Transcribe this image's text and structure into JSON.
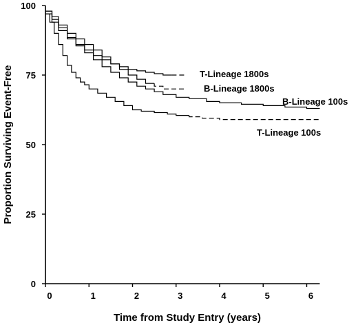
{
  "chart_data": {
    "type": "line",
    "title": "",
    "xlabel": "Time from Study Entry (years)",
    "ylabel": "Proportion Surviving Event-Free",
    "xlim": [
      0,
      6.3
    ],
    "ylim": [
      0,
      100
    ],
    "x_ticks": [
      "0",
      "1",
      "2",
      "3",
      "4",
      "5",
      "6"
    ],
    "y_ticks": [
      "0",
      "25",
      "50",
      "75",
      "100"
    ],
    "grid": false,
    "legend": "none (series labelled directly beside each curve end)",
    "series": [
      {
        "name": "T-Lineage 1800s",
        "x": [
          0,
          0.15,
          0.3,
          0.5,
          0.7,
          0.9,
          1.1,
          1.3,
          1.5,
          1.7,
          1.9,
          2.1,
          2.3,
          2.5,
          2.7,
          2.9,
          3.2
        ],
        "y": [
          98,
          95,
          92,
          88.5,
          86,
          84,
          82,
          80.5,
          79,
          78,
          77,
          76.5,
          76,
          75.5,
          75,
          75,
          75
        ],
        "dashed_from_x": 2.9
      },
      {
        "name": "B-Lineage 1800s",
        "x": [
          0,
          0.15,
          0.3,
          0.5,
          0.7,
          0.9,
          1.1,
          1.3,
          1.5,
          1.7,
          1.9,
          2.1,
          2.3,
          2.5,
          2.7,
          2.9,
          3.2
        ],
        "y": [
          98,
          96,
          93,
          90,
          88,
          86,
          84,
          81.5,
          79,
          77,
          75,
          73.5,
          72,
          71,
          70,
          70,
          70
        ],
        "dashed_from_x": 2.5
      },
      {
        "name": "B-Lineage 100s",
        "x": [
          0,
          0.15,
          0.3,
          0.5,
          0.7,
          0.9,
          1.1,
          1.3,
          1.5,
          1.7,
          1.9,
          2.1,
          2.3,
          2.5,
          2.7,
          3.0,
          3.3,
          3.7,
          4.0,
          4.5,
          5.0,
          5.5,
          6.0,
          6.3
        ],
        "y": [
          97,
          94,
          91,
          88,
          85.5,
          83,
          80.5,
          78,
          76,
          74,
          72.5,
          71,
          70,
          69,
          68,
          67,
          66.5,
          65.5,
          65,
          64.5,
          64,
          63.5,
          63,
          63
        ],
        "dashed_from_x": 6.3
      },
      {
        "name": "T-Lineage 100s",
        "x": [
          0,
          0.1,
          0.2,
          0.3,
          0.4,
          0.5,
          0.6,
          0.7,
          0.8,
          0.9,
          1.0,
          1.2,
          1.4,
          1.6,
          1.8,
          2.0,
          2.2,
          2.5,
          2.8,
          3.0,
          3.3,
          3.6,
          4.0,
          4.5,
          5.0,
          5.5,
          6.0,
          6.3
        ],
        "y": [
          97,
          94,
          90,
          86,
          82,
          78.5,
          76,
          74,
          72.5,
          71.5,
          70,
          68.5,
          67,
          65.5,
          64,
          62.5,
          62,
          61.5,
          61,
          60.5,
          60,
          59.5,
          59,
          59,
          59,
          59,
          59,
          59
        ],
        "dashed_from_x": 3.3
      }
    ]
  }
}
